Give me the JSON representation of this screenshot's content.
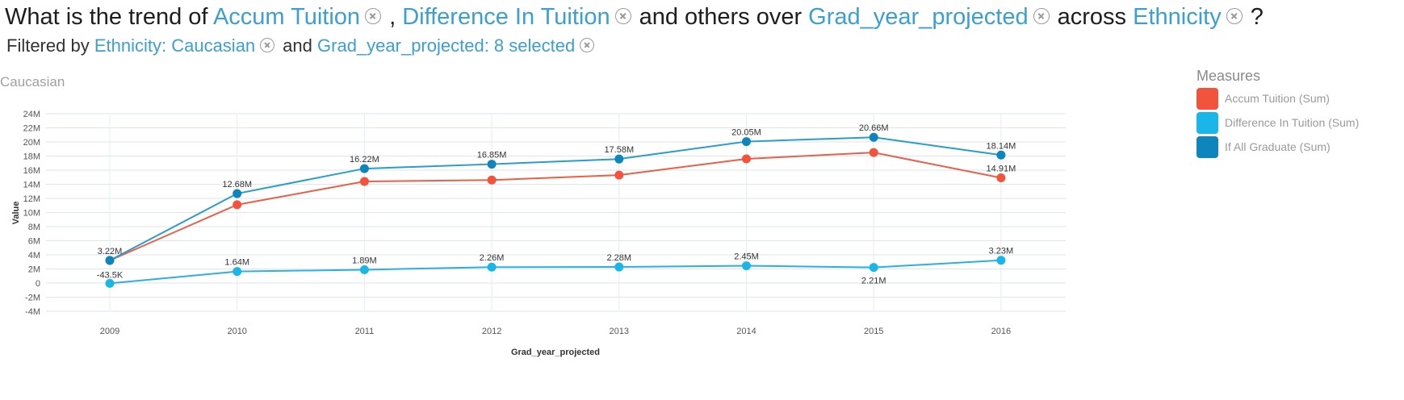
{
  "question": {
    "prefix": "What is the trend of",
    "measure1": "Accum Tuition",
    "sep": ",",
    "measure2": "Difference In Tuition",
    "mid1": "and others over",
    "dimension": "Grad_year_projected",
    "mid2": "across",
    "group": "Ethnicity",
    "suffix": "?"
  },
  "filters": {
    "prefix": "Filtered by",
    "filter1": "Ethnicity: Caucasian",
    "conj": "and",
    "filter2": "Grad_year_projected: 8 selected"
  },
  "facet_label": "Caucasian",
  "legend": {
    "title": "Measures",
    "items": [
      {
        "label": "Accum Tuition (Sum)",
        "color": "#f2533d"
      },
      {
        "label": "Difference In Tuition (Sum)",
        "color": "#1ab6ea"
      },
      {
        "label": "If All Graduate (Sum)",
        "color": "#0f85bd"
      }
    ]
  },
  "chart_data": {
    "type": "line",
    "xlabel": "Grad_year_projected",
    "ylabel": "Value",
    "categories": [
      "2009",
      "2010",
      "2011",
      "2012",
      "2013",
      "2014",
      "2015",
      "2016"
    ],
    "ylim": [
      -4,
      24
    ],
    "yticks": [
      -4,
      -2,
      0,
      2,
      4,
      6,
      8,
      10,
      12,
      14,
      16,
      18,
      20,
      22,
      24
    ],
    "ytick_labels": [
      "-4M",
      "-2M",
      "0",
      "2M",
      "4M",
      "6M",
      "8M",
      "10M",
      "12M",
      "14M",
      "16M",
      "18M",
      "20M",
      "22M",
      "24M"
    ],
    "grid": true,
    "series": [
      {
        "name": "Accum Tuition (Sum)",
        "color": "#f2533d",
        "line_color": "#e8604a",
        "values": [
          3.2,
          11.1,
          14.4,
          14.6,
          15.3,
          17.6,
          18.5,
          14.91
        ],
        "labels": [
          "",
          "",
          "",
          "",
          "",
          "",
          "",
          "14.91M"
        ]
      },
      {
        "name": "Difference In Tuition (Sum)",
        "color": "#1ab6ea",
        "line_color": "#2eaee0",
        "values": [
          -0.0435,
          1.64,
          1.89,
          2.26,
          2.28,
          2.45,
          2.21,
          3.23
        ],
        "labels": [
          "-43.5K",
          "1.64M",
          "1.89M",
          "2.26M",
          "2.28M",
          "2.45M",
          "2.21M",
          "3.23M"
        ],
        "label_below": [
          false,
          false,
          false,
          false,
          false,
          false,
          true,
          false
        ]
      },
      {
        "name": "If All Graduate (Sum)",
        "color": "#0f85bd",
        "line_color": "#2a9ccc",
        "values": [
          3.22,
          12.68,
          16.22,
          16.85,
          17.58,
          20.05,
          20.66,
          18.14
        ],
        "labels": [
          "3.22M",
          "12.68M",
          "16.22M",
          "16.85M",
          "17.58M",
          "20.05M",
          "20.66M",
          "18.14M"
        ]
      }
    ]
  }
}
